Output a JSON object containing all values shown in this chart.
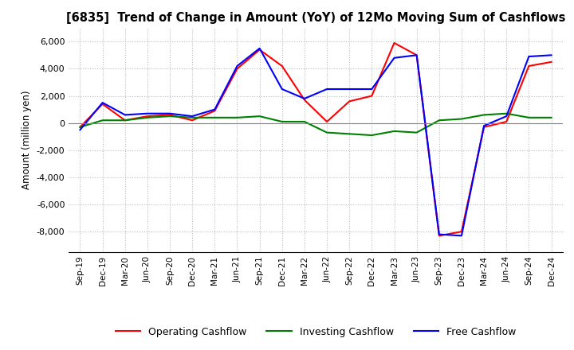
{
  "title": "[6835]  Trend of Change in Amount (YoY) of 12Mo Moving Sum of Cashflows",
  "ylabel": "Amount (million yen)",
  "x_labels": [
    "Sep-19",
    "Dec-19",
    "Mar-20",
    "Jun-20",
    "Sep-20",
    "Dec-20",
    "Mar-21",
    "Jun-21",
    "Sep-21",
    "Dec-21",
    "Mar-22",
    "Jun-22",
    "Sep-22",
    "Dec-22",
    "Mar-23",
    "Jun-23",
    "Sep-23",
    "Dec-23",
    "Mar-24",
    "Jun-24",
    "Sep-24",
    "Dec-24"
  ],
  "operating": [
    -300,
    1400,
    200,
    500,
    600,
    200,
    900,
    4000,
    5400,
    4200,
    1700,
    100,
    1600,
    2000,
    5900,
    5000,
    -8300,
    -8000,
    -300,
    100,
    4200,
    4500
  ],
  "investing": [
    -300,
    200,
    200,
    400,
    500,
    400,
    400,
    400,
    500,
    100,
    100,
    -700,
    -800,
    -900,
    -600,
    -700,
    200,
    300,
    600,
    700,
    400,
    400
  ],
  "free": [
    -500,
    1500,
    600,
    700,
    700,
    500,
    1000,
    4200,
    5500,
    2500,
    1800,
    2500,
    2500,
    2500,
    4800,
    5000,
    -8200,
    -8300,
    -200,
    500,
    4900,
    5000
  ],
  "ylim": [
    -9500,
    7000
  ],
  "yticks": [
    -8000,
    -6000,
    -4000,
    -2000,
    0,
    2000,
    4000,
    6000
  ],
  "operating_color": "#ff0000",
  "investing_color": "#008000",
  "free_color": "#0000ff",
  "bg_color": "#ffffff",
  "grid_color": "#bbbbbb"
}
